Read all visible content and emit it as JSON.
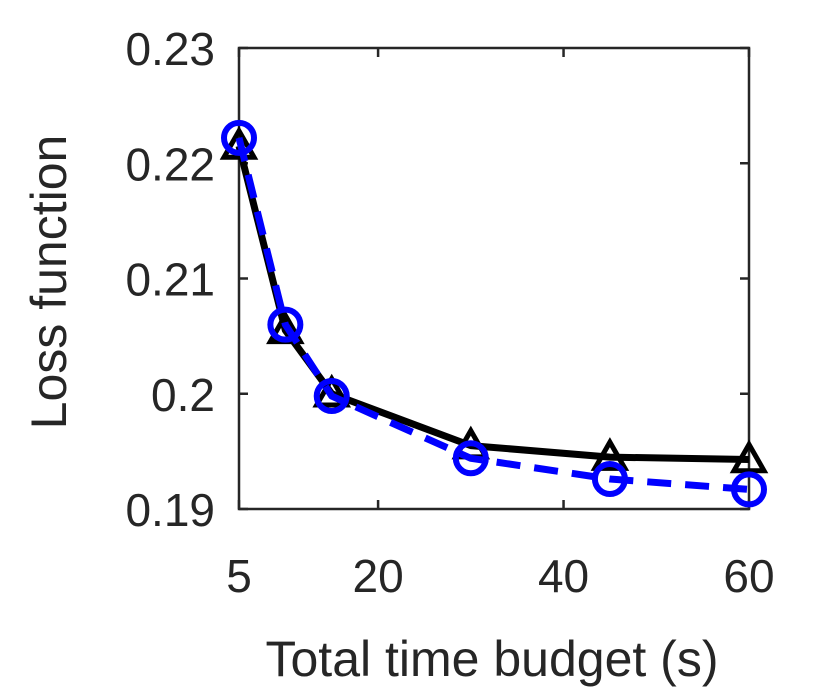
{
  "chart_data": {
    "type": "line",
    "title": "",
    "xlabel": "Total time budget (s)",
    "ylabel": "Loss function",
    "xlim": [
      5,
      60
    ],
    "ylim": [
      0.19,
      0.23
    ],
    "x_ticks": [
      5,
      20,
      40,
      60
    ],
    "x_tick_labels": [
      "5",
      "20",
      "40",
      "60"
    ],
    "y_ticks": [
      0.19,
      0.2,
      0.21,
      0.22,
      0.23
    ],
    "y_tick_labels": [
      "0.19",
      "0.2",
      "0.21",
      "0.22",
      "0.23"
    ],
    "grid": false,
    "legend": "none",
    "x": [
      5,
      10,
      15,
      30,
      45,
      60
    ],
    "series": [
      {
        "values": [
          0.2215,
          0.2055,
          0.2,
          0.1955,
          0.1945,
          0.1943
        ],
        "color": "#000000",
        "line_style": "solid",
        "marker": "triangle"
      },
      {
        "values": [
          0.2222,
          0.206,
          0.1998,
          0.1944,
          0.1926,
          0.1917
        ],
        "color": "#0000ff",
        "line_style": "dashed",
        "marker": "circle"
      }
    ]
  }
}
